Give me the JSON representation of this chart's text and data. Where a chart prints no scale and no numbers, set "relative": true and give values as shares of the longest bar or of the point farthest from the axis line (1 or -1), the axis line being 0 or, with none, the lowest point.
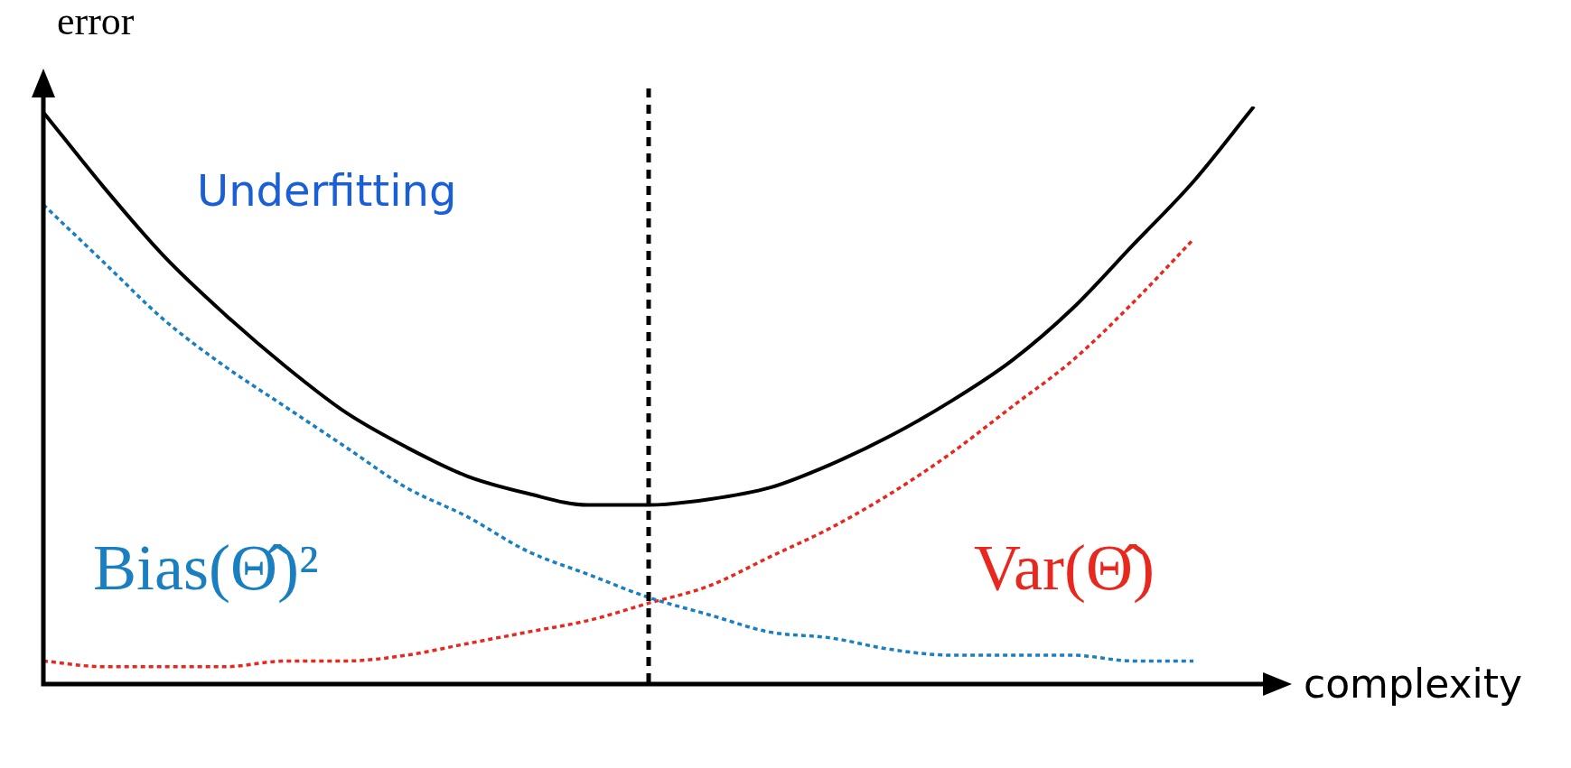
{
  "chart_data": {
    "type": "line",
    "relative": true,
    "xlabel": "complexity",
    "ylabel": "error",
    "annotations": [
      "Underfitting"
    ],
    "legend": false,
    "categories": [
      null,
      null,
      null,
      null,
      null,
      null,
      null,
      null,
      null,
      null,
      null,
      null,
      null,
      null,
      null,
      null,
      null,
      null,
      null,
      null,
      null
    ],
    "series": [
      {
        "color": "#000000",
        "line_style": "solid",
        "values": [
          0.99,
          0.86,
          0.74,
          0.64,
          0.55,
          0.47,
          0.41,
          0.36,
          0.33,
          0.31,
          0.31,
          0.32,
          0.34,
          0.38,
          0.43,
          0.49,
          0.56,
          0.65,
          0.76,
          0.87,
          1
        ]
      },
      {
        "name": "Bias(Θ̂)²",
        "color": "#1a7fc1",
        "line_style": "dashed",
        "values": [
          0.83,
          0.73,
          0.63,
          0.55,
          0.48,
          0.41,
          0.34,
          0.29,
          0.23,
          0.19,
          0.15,
          0.12,
          0.09,
          0.08,
          0.06,
          0.05,
          0.05,
          0.05,
          0.04,
          0.04,
          null
        ]
      },
      {
        "name": "Var(Θ̂)",
        "color": "#e8281e",
        "line_style": "dashed",
        "values": [
          0.04,
          0.03,
          0.03,
          0.03,
          0.04,
          0.04,
          0.05,
          0.07,
          0.09,
          0.11,
          0.14,
          0.17,
          0.22,
          0.27,
          0.33,
          0.4,
          0.48,
          0.56,
          0.66,
          0.77,
          null
        ]
      }
    ]
  }
}
